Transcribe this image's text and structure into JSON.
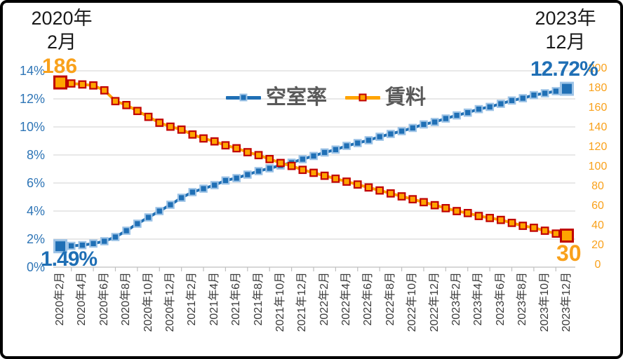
{
  "frame": {
    "background": "#FFFFFF",
    "border_color": "#000000"
  },
  "annotations": {
    "top_left_line1": "2020年",
    "top_left_line2": "2月",
    "top_right_line1": "2023年",
    "top_right_line2": "12月",
    "vacancy_start_label": "1.49%",
    "vacancy_end_label": "12.72%",
    "rent_start_label": "186",
    "rent_end_label": "30"
  },
  "colors": {
    "vacancy_blue": "#1F6FB5",
    "vacancy_marker_halo": "#9DC3E6",
    "left_axis_blue": "#2E75B6",
    "rent_orange": "#FFA400",
    "rent_marker_border": "#C00000",
    "orange_text": "#F9A11B",
    "gridline": "#D9D9D9",
    "legend_text": "#595959"
  },
  "chart_data": {
    "type": "line",
    "title": "",
    "n_points": 47,
    "x_label_interval": 2,
    "x_labels": [
      "2020年2月",
      "2020年4月",
      "2020年6月",
      "2020年8月",
      "2020年10月",
      "2020年12月",
      "2021年2月",
      "2021年4月",
      "2021年6月",
      "2021年8月",
      "2021年10月",
      "2021年12月",
      "2022年2月",
      "2022年4月",
      "2022年6月",
      "2022年8月",
      "2022年10月",
      "2022年12月",
      "2023年2月",
      "2023年4月",
      "2023年6月",
      "2023年8月",
      "2023年10月",
      "2023年12月"
    ],
    "left_axis": {
      "ticks": [
        "0%",
        "2%",
        "4%",
        "6%",
        "8%",
        "10%",
        "12%",
        "14%"
      ],
      "min": 0,
      "max": 14,
      "color": "#2E75B6"
    },
    "right_axis": {
      "ticks": [
        "0",
        "20",
        "40",
        "60",
        "80",
        "100",
        "120",
        "140",
        "160",
        "180",
        "200"
      ],
      "min": 0,
      "max": 200,
      "color": "#F9A11B"
    },
    "grid": "horizontal",
    "legend_position": "top-center",
    "series": [
      {
        "name": "空室率",
        "axis": "left",
        "unit": "%",
        "line_color": "#1F6FB5",
        "marker_fill": "#1F6FB5",
        "marker_border": "#9DC3E6",
        "first_value": 1.49,
        "last_value": 12.72,
        "values": [
          1.49,
          1.52,
          1.57,
          1.68,
          1.85,
          2.15,
          2.6,
          3.1,
          3.55,
          4.0,
          4.45,
          4.95,
          5.35,
          5.6,
          5.85,
          6.18,
          6.35,
          6.6,
          6.85,
          7.05,
          7.25,
          7.45,
          7.7,
          7.93,
          8.18,
          8.38,
          8.65,
          8.85,
          9.05,
          9.3,
          9.5,
          9.7,
          9.93,
          10.18,
          10.35,
          10.6,
          10.82,
          11.02,
          11.27,
          11.43,
          11.65,
          11.88,
          12.05,
          12.27,
          12.4,
          12.55,
          12.72
        ]
      },
      {
        "name": "賃料",
        "axis": "right",
        "unit": "",
        "line_color": "#FFA400",
        "marker_fill": "#FFA400",
        "marker_border": "#C00000",
        "first_value": 186,
        "last_value": 30,
        "values": [
          186,
          185,
          184,
          183,
          178,
          167,
          163,
          157,
          151,
          145,
          141,
          138,
          133,
          129,
          126,
          122,
          119,
          115,
          112,
          108,
          104,
          101,
          97,
          94,
          91,
          88,
          85,
          82,
          79,
          76,
          73,
          70,
          67,
          64,
          61,
          58,
          55,
          53,
          50,
          48,
          46,
          43,
          40,
          38,
          35,
          32,
          30
        ]
      }
    ]
  }
}
